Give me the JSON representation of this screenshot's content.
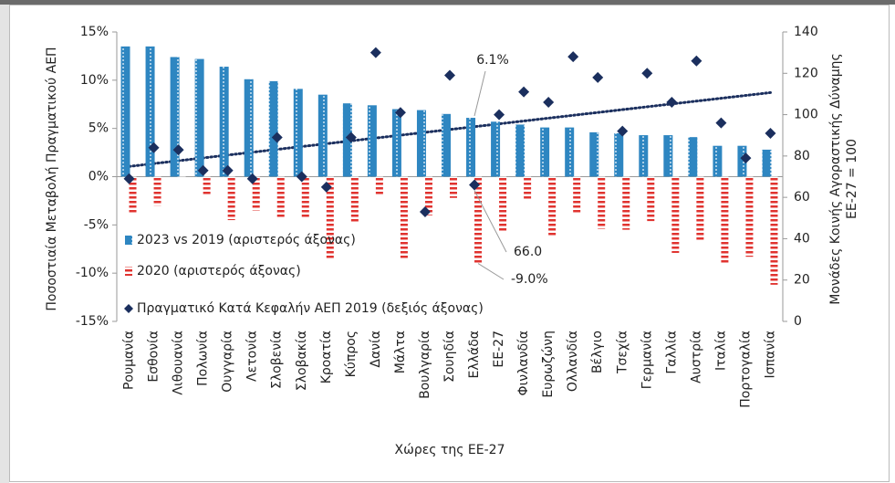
{
  "chart_data": {
    "type": "bar_line_combo",
    "y_label": "Ποσοστιαία Μεταβολή Πραγματικού ΑΕΠ",
    "y2_label": "Μονάδες Κοινής Αγοραστικής Δύναμης ΕΕ-27 = 100",
    "x_label": "Χώρες της ΕΕ-27",
    "categories": [
      "Ρουμανία",
      "Εσθονία",
      "Λιθουανία",
      "Πολωνία",
      "Ουγγαρία",
      "Λετονία",
      "Σλοβενία",
      "Σλοβακία",
      "Κροατία",
      "Κύπρος",
      "Δανία",
      "Μάλτα",
      "Βουλγαρία",
      "Σουηδία",
      "Ελλάδα",
      "ΕΕ-27",
      "Φινλανδία",
      "Ευρωζώνη",
      "Ολλανδία",
      "Βέλγιο",
      "Τσεχία",
      "Γερμανία",
      "Γαλλία",
      "Αυστρία",
      "Ιταλία",
      "Πορτογαλία",
      "Ισπανία"
    ],
    "series": [
      {
        "name": "2023 vs 2019 (αριστερός άξονας)",
        "color": "#2e86c1",
        "kind": "bar",
        "values": [
          13.5,
          13.5,
          12.4,
          12.2,
          11.4,
          10.1,
          9.9,
          9.1,
          8.5,
          7.6,
          7.4,
          7.0,
          6.9,
          6.5,
          6.1,
          5.7,
          5.4,
          5.1,
          5.1,
          4.6,
          4.5,
          4.3,
          4.3,
          4.1,
          3.2,
          3.2,
          2.8
        ],
        "value_labels": [
          null,
          null,
          null,
          null,
          null,
          null,
          null,
          null,
          null,
          null,
          null,
          null,
          null,
          null,
          "6.1%",
          null,
          null,
          null,
          null,
          null,
          null,
          null,
          null,
          null,
          null,
          null,
          null
        ]
      },
      {
        "name": "2020 (αριστερός άξονας)",
        "color": "#e0332f",
        "kind": "hatched_bar",
        "values": [
          -3.9,
          -3.0,
          -0.1,
          -2.0,
          -4.5,
          -3.5,
          -4.2,
          -4.3,
          -8.5,
          -4.8,
          -2.0,
          -8.5,
          -4.0,
          -2.2,
          -9.0,
          -5.6,
          -2.4,
          -6.1,
          -3.9,
          -5.4,
          -5.5,
          -4.6,
          -7.9,
          -6.6,
          -9.0,
          -8.3,
          -11.2
        ],
        "value_labels": [
          null,
          null,
          null,
          null,
          null,
          null,
          null,
          null,
          null,
          null,
          null,
          null,
          null,
          null,
          "-9.0%",
          null,
          null,
          null,
          null,
          null,
          null,
          null,
          null,
          null,
          null,
          null,
          null
        ]
      },
      {
        "name": "Πραγματικό Κατά Κεφαλήν ΑΕΠ 2019 (δεξιός άξονας)",
        "color": "#1b2f5e",
        "kind": "scatter",
        "axis": "y2",
        "values": [
          69,
          84,
          83,
          73,
          73,
          69,
          89,
          70,
          65,
          89,
          130,
          101,
          53,
          119,
          66.0,
          100,
          111,
          106,
          128,
          118,
          92,
          120,
          106,
          126,
          96,
          79,
          91
        ],
        "value_labels": [
          null,
          null,
          null,
          null,
          null,
          null,
          null,
          null,
          null,
          null,
          null,
          null,
          null,
          null,
          "66.0",
          null,
          null,
          null,
          null,
          null,
          null,
          null,
          null,
          null,
          null,
          null,
          null
        ]
      }
    ],
    "trendline": {
      "series": 2,
      "color": "#1b2f5e"
    },
    "ylim": [
      -15,
      15
    ],
    "yticks": [
      {
        "value": -15,
        "label": "-15%"
      },
      {
        "value": -10,
        "label": "-10%"
      },
      {
        "value": -5,
        "label": "-5%"
      },
      {
        "value": 0,
        "label": "0%"
      },
      {
        "value": 5,
        "label": "5%"
      },
      {
        "value": 10,
        "label": "10%"
      },
      {
        "value": 15,
        "label": "15%"
      }
    ],
    "y2lim": [
      0,
      140
    ],
    "y2ticks": [
      0,
      20,
      40,
      60,
      80,
      100,
      120,
      140
    ]
  }
}
